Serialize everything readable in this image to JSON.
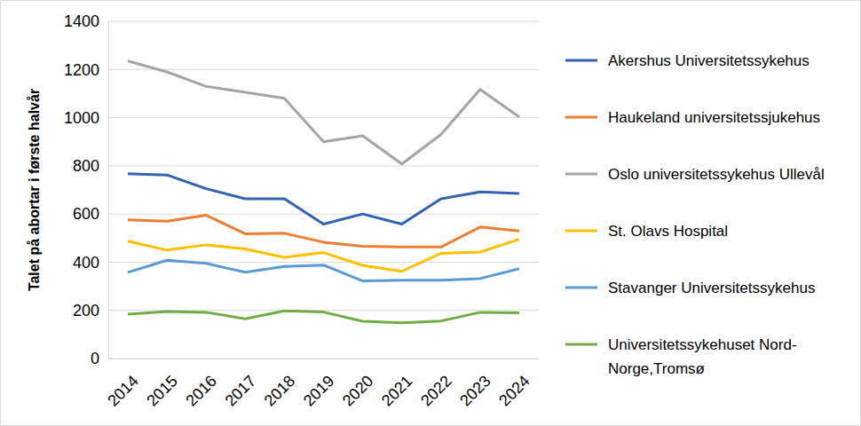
{
  "chart_data": {
    "type": "line",
    "y_label": "Talet på abortar i første halvår",
    "categories": [
      "2014",
      "2015",
      "2016",
      "2017",
      "2018",
      "2019",
      "2020",
      "2021",
      "2022",
      "2023",
      "2024"
    ],
    "series": [
      {
        "name": "Akershus Universitetssykehus",
        "color": "#3362b0",
        "values": [
          767,
          762,
          705,
          663,
          663,
          558,
          600,
          558,
          663,
          692,
          685
        ]
      },
      {
        "name": "Haukeland universitetssjukehus",
        "color": "#ed7d31",
        "values": [
          576,
          570,
          595,
          518,
          520,
          483,
          466,
          463,
          463,
          546,
          530
        ]
      },
      {
        "name": "Oslo universitetssykehus Ullevål",
        "color": "#a5a5a5",
        "values": [
          1235,
          1190,
          1130,
          1105,
          1080,
          900,
          925,
          808,
          930,
          1117,
          1003
        ]
      },
      {
        "name": "St. Olavs Hospital",
        "color": "#ffc000",
        "values": [
          487,
          450,
          472,
          455,
          420,
          440,
          387,
          362,
          437,
          442,
          495
        ]
      },
      {
        "name": "Stavanger Universitetssykehus",
        "color": "#5b9bd5",
        "values": [
          358,
          408,
          395,
          358,
          382,
          388,
          322,
          325,
          325,
          332,
          373
        ]
      },
      {
        "name": "Universitetssykehuset Nord-Norge,Tromsø",
        "color": "#70ad47",
        "values": [
          184,
          195,
          192,
          165,
          198,
          193,
          155,
          148,
          156,
          192,
          190
        ]
      }
    ],
    "ylim": [
      0,
      1400
    ],
    "yticks": [
      0,
      200,
      400,
      600,
      800,
      1000,
      1200,
      1400
    ],
    "grid": true,
    "legend": "right"
  }
}
